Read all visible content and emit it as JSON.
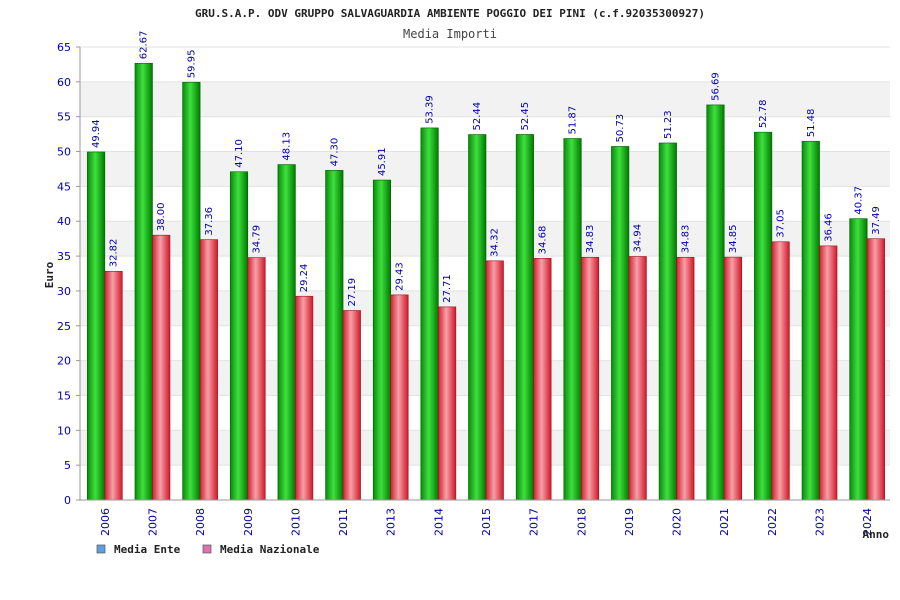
{
  "chart_data": {
    "type": "bar",
    "title": "GRU.S.A.P. ODV GRUPPO SALVAGUARDIA AMBIENTE POGGIO DEI PINI (c.f.92035300927)",
    "subtitle": "Media Importi",
    "xlabel": "Anno",
    "ylabel": "Euro",
    "ylim": [
      0,
      65
    ],
    "yticks": [
      0,
      5,
      10,
      15,
      20,
      25,
      30,
      35,
      40,
      45,
      50,
      55,
      60,
      65
    ],
    "categories": [
      "2006",
      "2007",
      "2008",
      "2009",
      "2010",
      "2011",
      "2013",
      "2014",
      "2015",
      "2017",
      "2018",
      "2019",
      "2020",
      "2021",
      "2022",
      "2023",
      "2024"
    ],
    "series": [
      {
        "name": "Media Ente",
        "values": [
          49.94,
          62.67,
          59.95,
          47.1,
          48.13,
          47.3,
          45.91,
          53.39,
          52.44,
          52.45,
          51.87,
          50.73,
          51.23,
          56.69,
          52.78,
          51.48,
          40.37
        ]
      },
      {
        "name": "Media Nazionale",
        "values": [
          32.82,
          38.0,
          37.36,
          34.79,
          29.24,
          27.19,
          29.43,
          27.71,
          34.32,
          34.68,
          34.83,
          34.94,
          34.83,
          34.85,
          37.05,
          36.46,
          37.49
        ]
      }
    ],
    "value_labels": {
      "Media Ente": [
        "49.94",
        "62.67",
        "59.95",
        "47.10",
        "48.13",
        "47.30",
        "45.91",
        "53.39",
        "52.44",
        "52.45",
        "51.87",
        "50.73",
        "51.23",
        "56.69",
        "52.78",
        "51.48",
        "40.37"
      ],
      "Media Nazionale": [
        "32.82",
        "38.00",
        "37.36",
        "34.79",
        "29.24",
        "27.19",
        "29.43",
        "27.71",
        "34.32",
        "34.68",
        "34.83",
        "34.94",
        "34.83",
        "34.85",
        "37.05",
        "36.46",
        "37.49"
      ]
    },
    "grid": true,
    "legend_position": "bottom-left",
    "colors": {
      "ente_bar": "#00b000",
      "nazionale_bar": "#e8404a",
      "legend_ente": "#5da0e0",
      "legend_nazionale": "#e070b0",
      "axis_text": "#0000aa",
      "band": "#f2f2f2"
    }
  }
}
